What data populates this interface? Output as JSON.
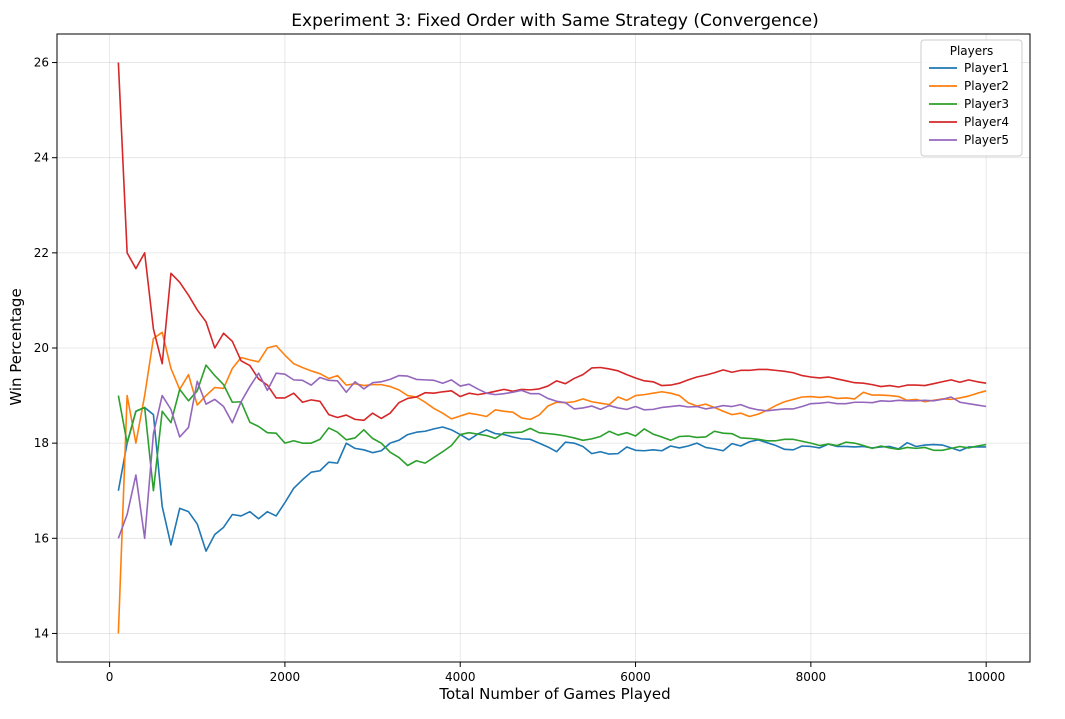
{
  "chart_data": {
    "type": "line",
    "title": "Experiment 3: Fixed Order with Same Strategy (Convergence)",
    "xlabel": "Total Number of Games Played",
    "ylabel": "Win Percentage",
    "xlim": [
      -600,
      10500
    ],
    "ylim": [
      13.4,
      26.6
    ],
    "xticks": [
      0,
      2000,
      4000,
      6000,
      8000,
      10000
    ],
    "yticks": [
      14,
      16,
      18,
      20,
      22,
      24,
      26
    ],
    "grid": true,
    "legend": {
      "title": "Players",
      "placement": "top-right"
    },
    "x": [
      100,
      200,
      300,
      400,
      500,
      600,
      700,
      800,
      900,
      1000,
      1100,
      1200,
      1300,
      1400,
      1500,
      1600,
      1700,
      1800,
      1900,
      2000,
      2100,
      2200,
      2300,
      2400,
      2500,
      2600,
      2700,
      2800,
      2900,
      3000,
      3100,
      3200,
      3300,
      3400,
      3500,
      3600,
      3700,
      3800,
      3900,
      4000,
      4100,
      4200,
      4300,
      4400,
      4500,
      4600,
      4700,
      4800,
      4900,
      5000,
      5100,
      5200,
      5300,
      5400,
      5500,
      5600,
      5700,
      5800,
      5900,
      6000,
      6100,
      6200,
      6300,
      6400,
      6500,
      6600,
      6700,
      6800,
      6900,
      7000,
      7100,
      7200,
      7300,
      7400,
      7500,
      7600,
      7700,
      7800,
      7900,
      8000,
      8100,
      8200,
      8300,
      8400,
      8500,
      8600,
      8700,
      8800,
      8900,
      9000,
      9100,
      9200,
      9300,
      9400,
      9500,
      9600,
      9700,
      9800,
      9900,
      10000
    ],
    "series": [
      {
        "name": "Player1",
        "color": "#1f77b4",
        "values": [
          17.0,
          18.0,
          18.67,
          18.75,
          18.6,
          16.67,
          15.86,
          16.63,
          16.56,
          16.3,
          15.73,
          16.08,
          16.23,
          16.5,
          16.47,
          16.56,
          16.41,
          16.56,
          16.47,
          16.75,
          17.05,
          17.23,
          17.39,
          17.42,
          17.6,
          17.58,
          18.0,
          17.89,
          17.86,
          17.8,
          17.84,
          18.0,
          18.06,
          18.18,
          18.23,
          18.25,
          18.3,
          18.34,
          18.28,
          18.18,
          18.07,
          18.19,
          18.28,
          18.2,
          18.18,
          18.13,
          18.09,
          18.08,
          18.0,
          17.92,
          17.82,
          18.02,
          18.0,
          17.93,
          17.78,
          17.82,
          17.77,
          17.78,
          17.92,
          17.85,
          17.84,
          17.86,
          17.84,
          17.94,
          17.9,
          17.94,
          18.0,
          17.91,
          17.88,
          17.84,
          17.99,
          17.94,
          18.03,
          18.07,
          18.01,
          17.95,
          17.87,
          17.86,
          17.94,
          17.93,
          17.9,
          17.98,
          17.93,
          17.93,
          17.92,
          17.93,
          17.9,
          17.92,
          17.93,
          17.88,
          18.01,
          17.93,
          17.96,
          17.97,
          17.96,
          17.9,
          17.84,
          17.92,
          17.92,
          17.92
        ]
      },
      {
        "name": "Player2",
        "color": "#ff7f0e",
        "values": [
          14.0,
          19.0,
          18.0,
          19.0,
          20.2,
          20.33,
          19.57,
          19.13,
          19.44,
          18.8,
          19.0,
          19.17,
          19.15,
          19.57,
          19.8,
          19.75,
          19.71,
          20.0,
          20.05,
          19.85,
          19.67,
          19.59,
          19.52,
          19.46,
          19.36,
          19.42,
          19.22,
          19.25,
          19.21,
          19.23,
          19.23,
          19.19,
          19.12,
          19.0,
          18.97,
          18.86,
          18.73,
          18.63,
          18.51,
          18.57,
          18.63,
          18.6,
          18.56,
          18.7,
          18.67,
          18.65,
          18.53,
          18.5,
          18.59,
          18.78,
          18.86,
          18.85,
          18.87,
          18.93,
          18.87,
          18.84,
          18.81,
          18.97,
          18.9,
          19.0,
          19.02,
          19.05,
          19.08,
          19.05,
          19.0,
          18.85,
          18.78,
          18.82,
          18.75,
          18.67,
          18.6,
          18.63,
          18.56,
          18.61,
          18.69,
          18.79,
          18.87,
          18.92,
          18.97,
          18.98,
          18.96,
          18.98,
          18.94,
          18.95,
          18.93,
          19.07,
          19.01,
          19.01,
          19.0,
          18.98,
          18.9,
          18.92,
          18.87,
          18.9,
          18.93,
          18.92,
          18.95,
          18.99,
          19.05,
          19.1
        ]
      },
      {
        "name": "Player3",
        "color": "#2ca02c",
        "values": [
          19.0,
          18.0,
          18.67,
          18.75,
          17.0,
          18.67,
          18.43,
          19.13,
          18.89,
          19.1,
          19.64,
          19.42,
          19.23,
          18.86,
          18.87,
          18.44,
          18.35,
          18.22,
          18.21,
          18.0,
          18.05,
          18.0,
          18.0,
          18.08,
          18.32,
          18.23,
          18.07,
          18.11,
          18.28,
          18.1,
          18.0,
          17.81,
          17.7,
          17.53,
          17.63,
          17.58,
          17.7,
          17.82,
          17.95,
          18.18,
          18.22,
          18.19,
          18.16,
          18.1,
          18.22,
          18.22,
          18.23,
          18.31,
          18.22,
          18.2,
          18.18,
          18.15,
          18.11,
          18.06,
          18.09,
          18.14,
          18.25,
          18.17,
          18.22,
          18.15,
          18.3,
          18.19,
          18.13,
          18.06,
          18.14,
          18.15,
          18.12,
          18.13,
          18.25,
          18.21,
          18.2,
          18.11,
          18.1,
          18.08,
          18.05,
          18.05,
          18.08,
          18.08,
          18.04,
          18.0,
          17.95,
          17.98,
          17.95,
          18.02,
          18.0,
          17.95,
          17.89,
          17.94,
          17.9,
          17.87,
          17.91,
          17.89,
          17.91,
          17.85,
          17.85,
          17.89,
          17.93,
          17.9,
          17.94,
          17.97
        ]
      },
      {
        "name": "Player4",
        "color": "#d62728",
        "values": [
          26.0,
          22.0,
          21.67,
          22.0,
          20.4,
          19.67,
          21.57,
          21.38,
          21.11,
          20.8,
          20.55,
          20.0,
          20.31,
          20.14,
          19.73,
          19.63,
          19.35,
          19.22,
          18.95,
          18.95,
          19.05,
          18.86,
          18.91,
          18.88,
          18.6,
          18.54,
          18.59,
          18.5,
          18.48,
          18.63,
          18.52,
          18.63,
          18.85,
          18.94,
          18.97,
          19.06,
          19.05,
          19.08,
          19.1,
          18.98,
          19.05,
          19.02,
          19.05,
          19.09,
          19.13,
          19.09,
          19.13,
          19.12,
          19.14,
          19.2,
          19.31,
          19.25,
          19.36,
          19.44,
          19.58,
          19.59,
          19.56,
          19.52,
          19.44,
          19.37,
          19.31,
          19.29,
          19.21,
          19.22,
          19.26,
          19.33,
          19.39,
          19.43,
          19.48,
          19.54,
          19.49,
          19.53,
          19.53,
          19.55,
          19.55,
          19.53,
          19.51,
          19.48,
          19.42,
          19.39,
          19.37,
          19.39,
          19.35,
          19.31,
          19.27,
          19.26,
          19.23,
          19.19,
          19.21,
          19.18,
          19.22,
          19.22,
          19.21,
          19.25,
          19.29,
          19.33,
          19.28,
          19.33,
          19.29,
          19.26
        ]
      },
      {
        "name": "Player5",
        "color": "#9467bd",
        "values": [
          16.0,
          16.5,
          17.33,
          16.0,
          18.2,
          19.0,
          18.71,
          18.13,
          18.33,
          19.3,
          18.82,
          18.92,
          18.77,
          18.43,
          18.87,
          19.19,
          19.47,
          19.11,
          19.47,
          19.45,
          19.33,
          19.32,
          19.22,
          19.38,
          19.32,
          19.31,
          19.07,
          19.29,
          19.14,
          19.27,
          19.29,
          19.34,
          19.42,
          19.41,
          19.34,
          19.33,
          19.32,
          19.26,
          19.33,
          19.2,
          19.24,
          19.14,
          19.05,
          19.02,
          19.04,
          19.07,
          19.11,
          19.04,
          19.04,
          18.94,
          18.88,
          18.85,
          18.72,
          18.74,
          18.78,
          18.71,
          18.79,
          18.74,
          18.71,
          18.77,
          18.7,
          18.71,
          18.75,
          18.77,
          18.79,
          18.76,
          18.77,
          18.72,
          18.75,
          18.79,
          18.77,
          18.81,
          18.74,
          18.7,
          18.68,
          18.7,
          18.72,
          18.72,
          18.77,
          18.83,
          18.84,
          18.86,
          18.83,
          18.83,
          18.86,
          18.86,
          18.85,
          18.89,
          18.88,
          18.9,
          18.89,
          18.89,
          18.9,
          18.89,
          18.92,
          18.97,
          18.86,
          18.83,
          18.8,
          18.77
        ]
      }
    ]
  }
}
